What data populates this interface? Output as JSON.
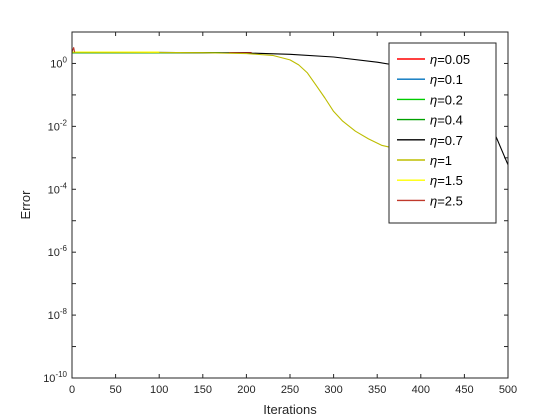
{
  "chart_data": {
    "type": "line",
    "xlabel": "Iterations",
    "ylabel": "Error",
    "xlim": [
      0,
      500
    ],
    "ylim": [
      1e-10,
      10
    ],
    "yscale": "log",
    "grid": false,
    "legend_position": "top-right",
    "x_ticks": [
      "0",
      "50",
      "100",
      "150",
      "200",
      "250",
      "300",
      "350",
      "400",
      "450",
      "500"
    ],
    "y_ticks": [
      {
        "base": "10",
        "exp": "0",
        "value": 1
      },
      {
        "base": "10",
        "exp": "-2",
        "value": 0.01
      },
      {
        "base": "10",
        "exp": "-4",
        "value": 0.0001
      },
      {
        "base": "10",
        "exp": "-6",
        "value": 1e-06
      },
      {
        "base": "10",
        "exp": "-8",
        "value": 1e-08
      },
      {
        "base": "10",
        "exp": "-10",
        "value": 1e-10
      }
    ],
    "series": [
      {
        "name": "=0.05",
        "color": "#ff0000",
        "points": [
          [
            0,
            2.2
          ],
          [
            100,
            2.2
          ],
          [
            206,
            2.2
          ]
        ]
      },
      {
        "name": "=0.1",
        "color": "#0072bd",
        "points": [
          [
            0,
            2.2
          ],
          [
            100,
            2.2
          ],
          [
            180,
            2.2
          ]
        ]
      },
      {
        "name": "=0.2",
        "color": "#00cc00",
        "points": [
          [
            0,
            2.2
          ],
          [
            100,
            2.2
          ],
          [
            170,
            2.2
          ]
        ]
      },
      {
        "name": "=0.4",
        "color": "#00a000",
        "points": [
          [
            0,
            2.2
          ],
          [
            100,
            2.2
          ],
          [
            160,
            2.2
          ]
        ]
      },
      {
        "name": "=0.7",
        "color": "#000000",
        "points": [
          [
            0,
            2.3
          ],
          [
            100,
            2.25
          ],
          [
            200,
            2.15
          ],
          [
            250,
            1.95
          ],
          [
            300,
            1.6
          ],
          [
            350,
            1.1
          ],
          [
            380,
            0.8
          ],
          [
            400,
            0.5
          ],
          [
            430,
            0.15
          ],
          [
            460,
            0.04
          ],
          [
            480,
            0.012
          ],
          [
            500,
            0.0006
          ]
        ]
      },
      {
        "name": "=1",
        "color": "#bdbd00",
        "points": [
          [
            0,
            2.3
          ],
          [
            150,
            2.2
          ],
          [
            200,
            2.05
          ],
          [
            230,
            1.8
          ],
          [
            250,
            1.3
          ],
          [
            260,
            0.9
          ],
          [
            270,
            0.5
          ],
          [
            280,
            0.2
          ],
          [
            290,
            0.08
          ],
          [
            300,
            0.03
          ],
          [
            310,
            0.015
          ],
          [
            325,
            0.007
          ],
          [
            340,
            0.004
          ],
          [
            355,
            0.0025
          ],
          [
            370,
            0.002
          ],
          [
            385,
            0.0018
          ],
          [
            400,
            0.0018
          ]
        ]
      },
      {
        "name": "=1.5",
        "color": "#ffff00",
        "points": [
          [
            0,
            2.3
          ],
          [
            100,
            2.3
          ]
        ]
      },
      {
        "name": "=2.5",
        "color": "#c0392b",
        "points": [
          [
            0,
            2.3
          ],
          [
            2,
            3.2
          ],
          [
            3,
            2.3
          ]
        ]
      }
    ]
  }
}
